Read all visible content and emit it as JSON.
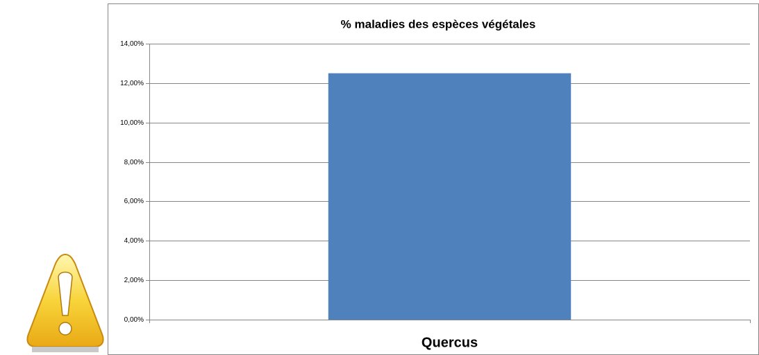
{
  "chart_data": {
    "type": "bar",
    "title": "% maladies des espèces végétales",
    "categories": [
      "Quercus"
    ],
    "values": [
      12.5
    ],
    "color": "#4f81bd",
    "ylim": [
      0,
      14
    ],
    "yticks": [
      {
        "value": 0,
        "label": "0,00%"
      },
      {
        "value": 2,
        "label": "2,00%"
      },
      {
        "value": 4,
        "label": "4,00%"
      },
      {
        "value": 6,
        "label": "6,00%"
      },
      {
        "value": 8,
        "label": "8,00%"
      },
      {
        "value": 10,
        "label": "10,00%"
      },
      {
        "value": 12,
        "label": "12,00%"
      },
      {
        "value": 14,
        "label": "14,00%"
      }
    ],
    "grid": true
  }
}
